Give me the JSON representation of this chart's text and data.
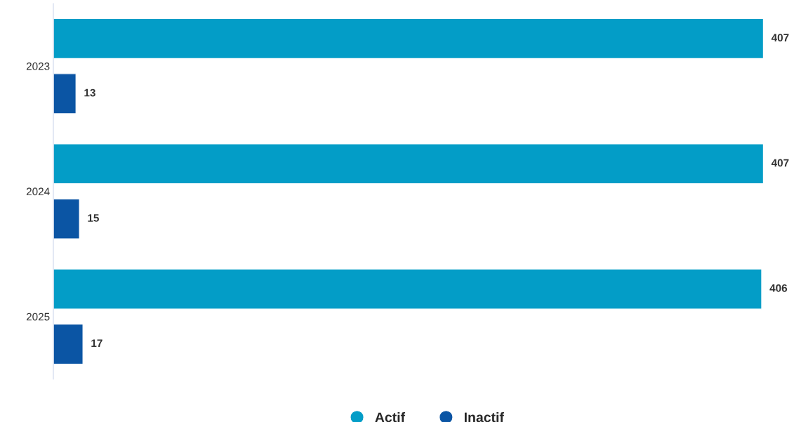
{
  "chart_data": {
    "type": "bar",
    "orientation": "horizontal",
    "categories": [
      "2023",
      "2024",
      "2025"
    ],
    "series": [
      {
        "name": "Actif",
        "color": "#039dc7",
        "values": [
          407,
          407,
          406
        ]
      },
      {
        "name": "Inactif",
        "color": "#0b55a4",
        "values": [
          13,
          15,
          17
        ]
      }
    ],
    "data_labels": true,
    "legend": "bottom",
    "marker": "circle",
    "grid": false,
    "tick_labels": "y"
  }
}
